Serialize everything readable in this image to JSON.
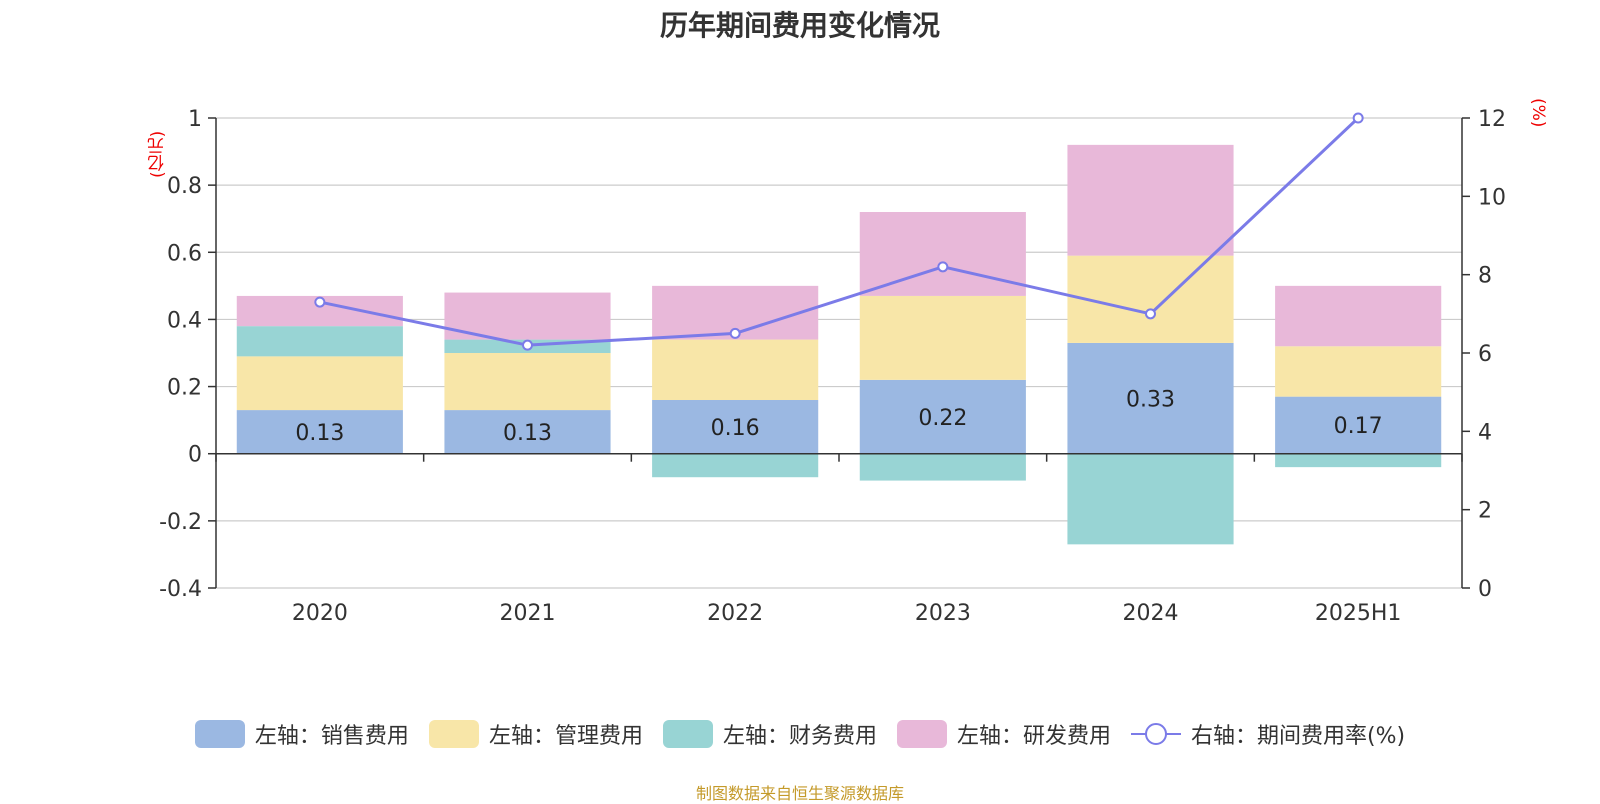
{
  "chart_data": {
    "type": "bar",
    "title": "历年期间费用变化情况",
    "categories": [
      "2020",
      "2021",
      "2022",
      "2023",
      "2024",
      "2025H1"
    ],
    "left_axis": {
      "unit": "(亿元)",
      "ylim": [
        -0.4,
        1
      ],
      "ticks": [
        -0.4,
        -0.2,
        0,
        0.2,
        0.4,
        0.6,
        0.8,
        1
      ]
    },
    "right_axis": {
      "unit": "(%)",
      "ylim": [
        0,
        12
      ],
      "ticks": [
        0,
        2,
        4,
        6,
        8,
        10,
        12
      ]
    },
    "series": [
      {
        "name": "左轴：销售费用",
        "type": "bar",
        "color": "#9bb8e2",
        "values": [
          0.13,
          0.13,
          0.16,
          0.22,
          0.33,
          0.17
        ],
        "labels": [
          "0.13",
          "0.13",
          "0.16",
          "0.22",
          "0.33",
          "0.17"
        ]
      },
      {
        "name": "左轴：管理费用",
        "type": "bar",
        "color": "#f8e6a8",
        "values": [
          0.16,
          0.17,
          0.18,
          0.25,
          0.26,
          0.15
        ]
      },
      {
        "name": "左轴：财务费用",
        "type": "bar",
        "color": "#98d4d4",
        "values": [
          0.09,
          0.04,
          -0.07,
          -0.08,
          -0.27,
          -0.04
        ]
      },
      {
        "name": "左轴：研发费用",
        "type": "bar",
        "color": "#e8b8d9",
        "values": [
          0.09,
          0.14,
          0.16,
          0.25,
          0.33,
          0.18
        ]
      },
      {
        "name": "右轴：期间费用率(%)",
        "type": "line",
        "color": "#7b7be8",
        "values": [
          7.3,
          6.2,
          6.5,
          8.2,
          7.0,
          12.0
        ]
      }
    ],
    "grid": true,
    "legend_position": "bottom"
  },
  "source": "制图数据来自恒生聚源数据库"
}
